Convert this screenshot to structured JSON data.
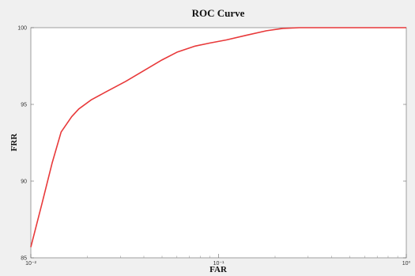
{
  "chart_data": {
    "type": "line",
    "title": "ROC Curve",
    "xlabel": "FAR",
    "ylabel": "FRR",
    "x_scale": "log",
    "xlim": [
      0.01,
      1
    ],
    "ylim": [
      85,
      100
    ],
    "x_ticks": [
      0.01,
      0.1,
      1
    ],
    "x_tick_labels": [
      "10⁻²",
      "10⁻¹",
      "10⁰"
    ],
    "y_ticks": [
      85,
      90,
      95,
      100
    ],
    "y_tick_labels": [
      "85",
      "90",
      "95",
      "100"
    ],
    "grid": false,
    "legend": "none",
    "series": [
      {
        "color": "#e8393a",
        "x": [
          0.01,
          0.0115,
          0.013,
          0.0145,
          0.0165,
          0.018,
          0.021,
          0.025,
          0.032,
          0.04,
          0.05,
          0.06,
          0.075,
          0.09,
          0.11,
          0.14,
          0.18,
          0.22,
          0.27,
          0.33,
          0.5,
          0.75,
          1.0
        ],
        "y": [
          85.7,
          88.6,
          91.2,
          93.2,
          94.2,
          94.7,
          95.3,
          95.8,
          96.5,
          97.2,
          97.9,
          98.4,
          98.8,
          99.0,
          99.2,
          99.5,
          99.8,
          99.95,
          100,
          100,
          100,
          100,
          100
        ]
      }
    ]
  }
}
